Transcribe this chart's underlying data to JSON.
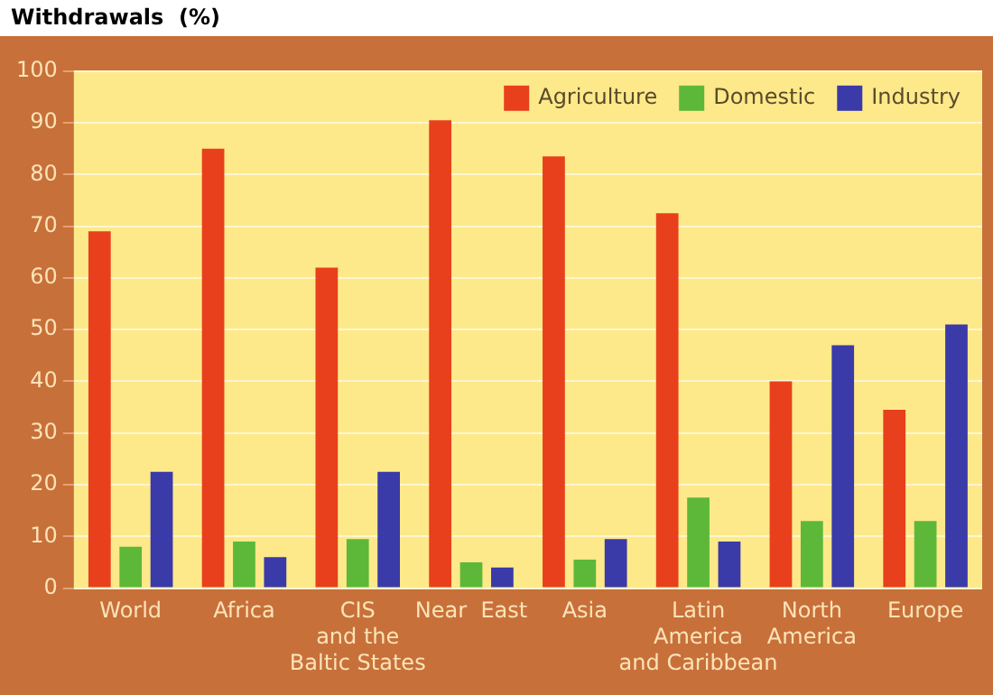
{
  "chart_data": {
    "type": "bar",
    "title": "Withdrawals  (%)",
    "categories": [
      "World",
      "Africa",
      "CIS\nand the\nBaltic States",
      "Near  East",
      "Asia",
      "Latin\nAmerica\nand Caribbean",
      "North\nAmerica",
      "Europe"
    ],
    "series": [
      {
        "name": "Agriculture",
        "color": "#e8401c",
        "values": [
          69,
          85,
          62,
          90.5,
          83.5,
          72.5,
          40,
          34.5
        ]
      },
      {
        "name": "Domestic",
        "color": "#5db83a",
        "values": [
          8,
          9,
          9.5,
          5,
          5.5,
          17.5,
          13,
          13
        ]
      },
      {
        "name": "Industry",
        "color": "#3a3aa8",
        "values": [
          22.5,
          6,
          22.5,
          4,
          9.5,
          9,
          47,
          51
        ]
      }
    ],
    "ylim": [
      0,
      100
    ],
    "yticks": [
      0,
      10,
      20,
      30,
      40,
      50,
      60,
      70,
      80,
      90,
      100
    ],
    "grid": "y",
    "legend": "top right"
  }
}
